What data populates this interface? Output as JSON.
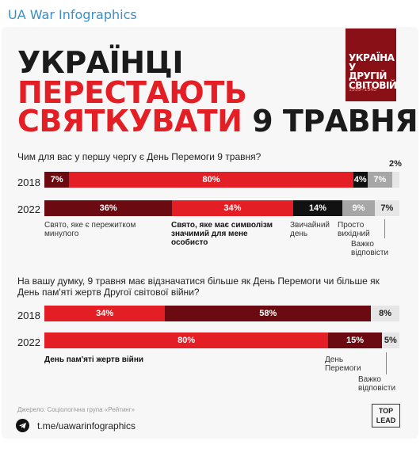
{
  "channel_name": "UA War Infographics",
  "headline": {
    "line1": "УКРАЇНЦІ",
    "line2": "ПЕРЕСТАЮТЬ",
    "line3_red": "СВЯТКУВАТИ",
    "line3_dark": "9 ТРАВНЯ"
  },
  "book": {
    "title": "УКРАЇНА У ДРУГІЙ СВІТОВІЙ",
    "years": "1939–1945"
  },
  "colors": {
    "dark_red": "#6b0a10",
    "red": "#e31e24",
    "black": "#111111",
    "gray": "#a6a6a6",
    "light": "#e6e6e6"
  },
  "chart_data": [
    {
      "type": "bar",
      "orientation": "horizontal",
      "stacked": "percent",
      "title": "Чим для вас у першу чергу є День Перемоги 9 травня?",
      "categories": [
        "2018",
        "2022"
      ],
      "series": [
        {
          "name": "Свято, яке є пережитком минулого",
          "values": [
            7,
            36
          ]
        },
        {
          "name": "Свято, яке має символізм значимий для мене особисто",
          "values": [
            80,
            34
          ]
        },
        {
          "name": "Звичайний день",
          "values": [
            4,
            14
          ]
        },
        {
          "name": "Просто вихідний",
          "values": [
            7,
            9
          ]
        },
        {
          "name": "Важко відповісти",
          "values": [
            2,
            7
          ]
        }
      ],
      "labels": [
        [
          "7%",
          "80%",
          "4%",
          "7%",
          "2%"
        ],
        [
          "36%",
          "34%",
          "14%",
          "9%",
          "7%"
        ]
      ]
    },
    {
      "type": "bar",
      "orientation": "horizontal",
      "stacked": "percent",
      "title": "На вашу думку, 9 травня має відзначатися більше як День Перемоги чи більше як День пам'яті жертв Другої світової війни?",
      "categories": [
        "2018",
        "2022"
      ],
      "series": [
        {
          "name": "День пам'яті жертв війни",
          "values": [
            34,
            80
          ]
        },
        {
          "name": "День Перемоги",
          "values": [
            58,
            15
          ]
        },
        {
          "name": "Важко відповісти",
          "values": [
            8,
            5
          ]
        }
      ],
      "labels": [
        [
          "34%",
          "58%",
          "8%"
        ],
        [
          "80%",
          "15%",
          "5%"
        ]
      ]
    }
  ],
  "legend1": [
    "Свято, яке є пережитком минулого",
    "Свято, яке має символізм значимий для мене особисто",
    "Звичайний день",
    "Просто вихідний",
    "Важко відповісти"
  ],
  "legend2": [
    "День пам'яті жертв війни",
    "День Перемоги",
    "Важко відповісти"
  ],
  "source": "Джерело: Соціологічна група «Рейтинг»",
  "brand": {
    "top": "TOP",
    "lead": "LEAD"
  },
  "footer": {
    "link": "t.me/uawarinfographics"
  }
}
